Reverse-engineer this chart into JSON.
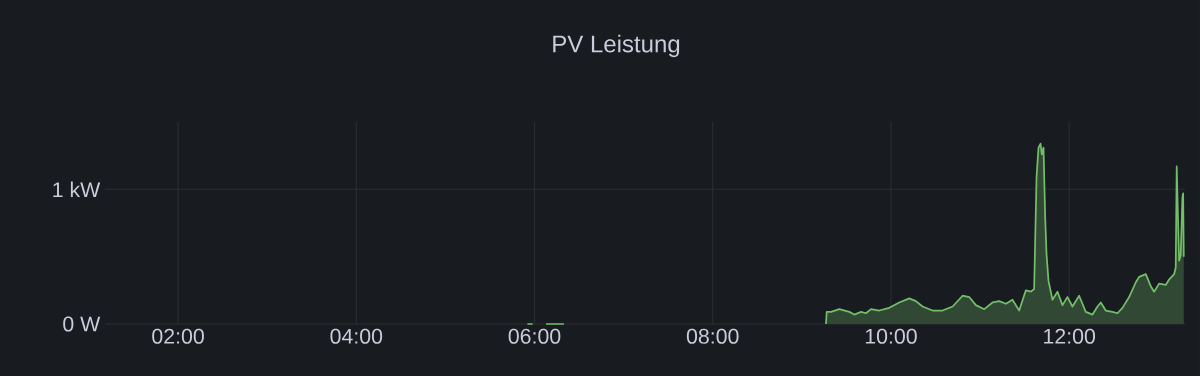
{
  "chart_data": {
    "type": "area",
    "title": "PV Leistung",
    "xlim": [
      1.18,
      13.3
    ],
    "ylim": [
      0,
      1.5
    ],
    "xticks": [
      {
        "value": 2,
        "label": "02:00"
      },
      {
        "value": 4,
        "label": "04:00"
      },
      {
        "value": 6,
        "label": "06:00"
      },
      {
        "value": 8,
        "label": "08:00"
      },
      {
        "value": 10,
        "label": "10:00"
      },
      {
        "value": 12,
        "label": "12:00"
      }
    ],
    "yticks": [
      {
        "value": 0,
        "label": "0 W"
      },
      {
        "value": 1,
        "label": "1 kW"
      }
    ],
    "grid": true,
    "series": [
      {
        "type": "line",
        "color": "#73bf69",
        "x": [
          5.92,
          5.98,
          6.05,
          6.13,
          6.33
        ],
        "values": [
          0,
          0,
          null,
          0,
          0
        ]
      },
      {
        "color": "#73bf69",
        "x": [
          9.271,
          9.279,
          9.327,
          9.421,
          9.533,
          9.589,
          9.664,
          9.72,
          9.776,
          9.869,
          9.981,
          10.093,
          10.206,
          10.28,
          10.355,
          10.467,
          10.579,
          10.692,
          10.804,
          10.879,
          10.953,
          11.047,
          11.14,
          11.215,
          11.29,
          11.364,
          11.439,
          11.514,
          11.57,
          11.607,
          11.634,
          11.656,
          11.679,
          11.693,
          11.712,
          11.731,
          11.746,
          11.768,
          11.813,
          11.869,
          11.925,
          11.981,
          12.037,
          12.112,
          12.187,
          12.262,
          12.318,
          12.355,
          12.411,
          12.486,
          12.542,
          12.598,
          12.673,
          12.748,
          12.785,
          12.86,
          12.916,
          12.953,
          13.009,
          13.084,
          13.121,
          13.178,
          13.196,
          13.207,
          13.222,
          13.234,
          13.252,
          13.271,
          13.279,
          13.286
        ],
        "values": [
          0,
          0.09,
          0.09,
          0.11,
          0.09,
          0.07,
          0.09,
          0.08,
          0.11,
          0.1,
          0.12,
          0.16,
          0.19,
          0.17,
          0.13,
          0.1,
          0.1,
          0.13,
          0.21,
          0.2,
          0.14,
          0.11,
          0.16,
          0.17,
          0.15,
          0.18,
          0.1,
          0.25,
          0.24,
          0.26,
          1.09,
          1.31,
          1.34,
          1.26,
          1.31,
          0.79,
          0.52,
          0.32,
          0.18,
          0.24,
          0.14,
          0.2,
          0.13,
          0.21,
          0.09,
          0.07,
          0.13,
          0.16,
          0.1,
          0.09,
          0.08,
          0.12,
          0.2,
          0.31,
          0.35,
          0.37,
          0.28,
          0.24,
          0.3,
          0.29,
          0.33,
          0.37,
          0.42,
          1.17,
          0.77,
          0.47,
          0.51,
          0.94,
          0.97,
          0.5
        ]
      }
    ]
  }
}
